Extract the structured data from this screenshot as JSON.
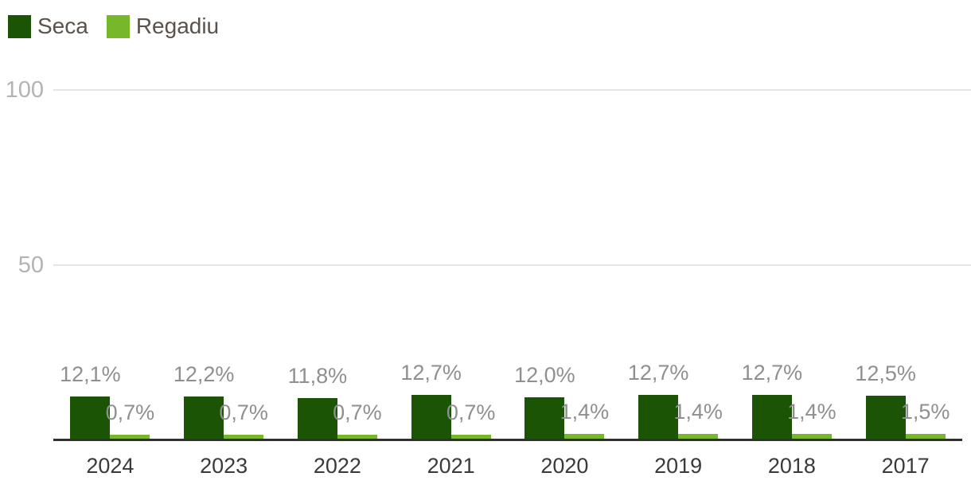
{
  "chart_data": {
    "type": "bar",
    "title": "",
    "xlabel": "",
    "ylabel": "",
    "categories": [
      "2024",
      "2023",
      "2022",
      "2021",
      "2020",
      "2019",
      "2018",
      "2017"
    ],
    "series": [
      {
        "name": "Seca",
        "color": "#1A5404",
        "values": [
          12.1,
          12.2,
          11.8,
          12.7,
          12.0,
          12.7,
          12.7,
          12.5
        ],
        "labels": [
          "12,1%",
          "12,2%",
          "11,8%",
          "12,7%",
          "12,0%",
          "12,7%",
          "12,7%",
          "12,5%"
        ]
      },
      {
        "name": "Regadiu",
        "color": "#76B82A",
        "values": [
          0.7,
          0.7,
          0.7,
          0.7,
          1.4,
          1.4,
          1.4,
          1.5
        ],
        "labels": [
          "0,7%",
          "0,7%",
          "0,7%",
          "0,7%",
          "1,4%",
          "1,4%",
          "1,4%",
          "1,5%"
        ]
      }
    ],
    "ylim": [
      0,
      100
    ],
    "yticks": [
      {
        "value": 100,
        "label": "100"
      },
      {
        "value": 50,
        "label": "50"
      }
    ],
    "grid": true,
    "legend_position": "top-left"
  },
  "colors": {
    "background": "#FFFFFF",
    "grid": "#E6E6E6",
    "axis": "#303030",
    "y_tick_label": "#B3B3B3",
    "value_label": "#8F8F8F",
    "x_tick_label": "#3A3A3A",
    "legend_text": "#5A524B"
  }
}
